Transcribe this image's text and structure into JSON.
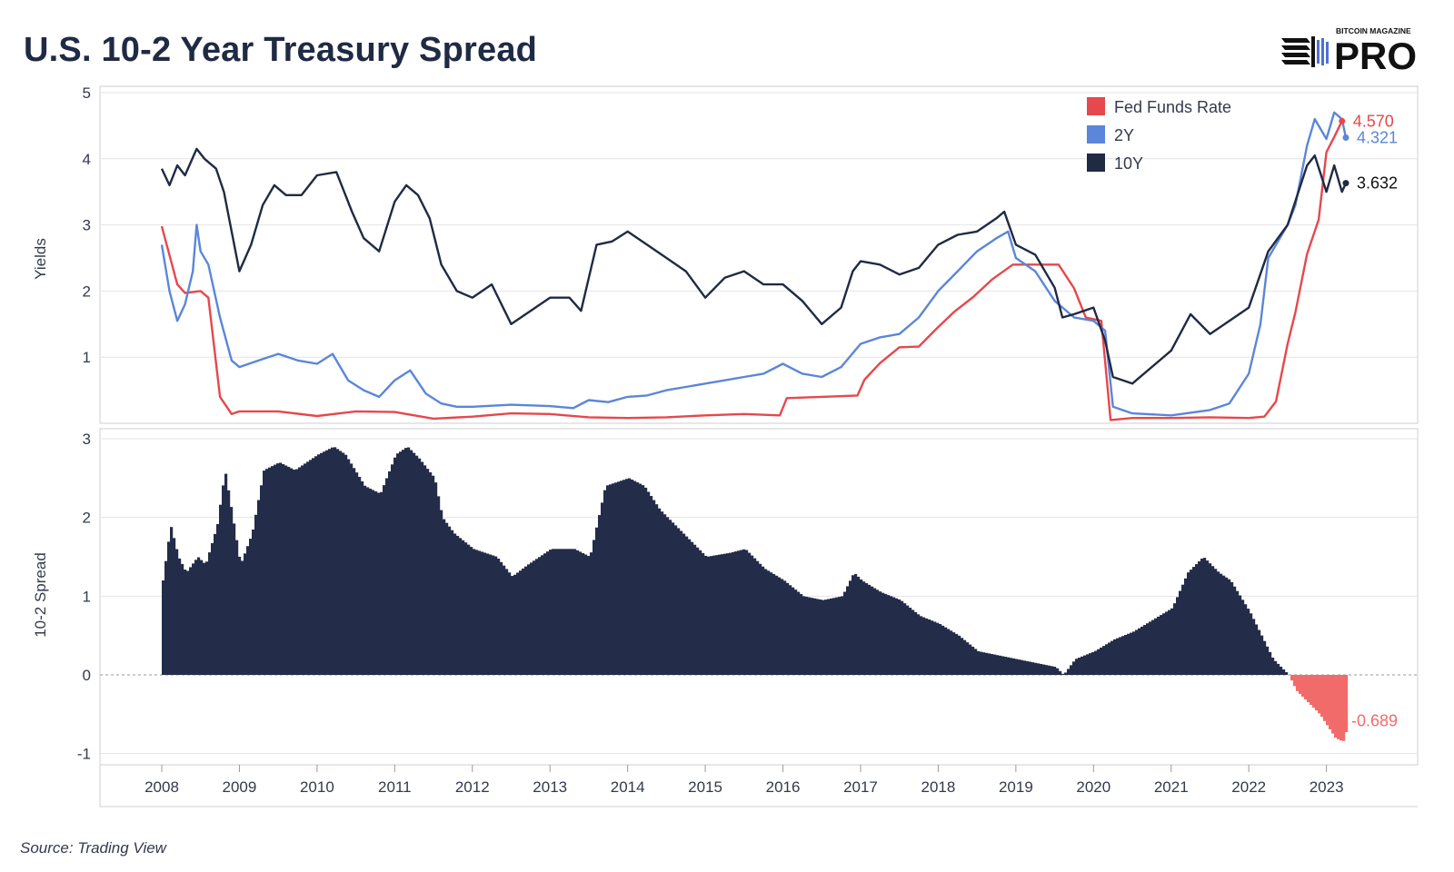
{
  "page": {
    "title": "U.S. 10-2 Year Treasury Spread",
    "source": "Source: Trading View",
    "logo": {
      "top_text": "BITCOIN MAGAZINE",
      "main_text": "PRO"
    }
  },
  "colors": {
    "fed": "#e5484d",
    "two_year": "#5b86d9",
    "ten_year": "#1f2a44",
    "spread_pos": "#232c49",
    "spread_neg": "#f26b6b",
    "grid": "#e4e4e4",
    "zero": "#999999"
  },
  "chart_data": [
    {
      "type": "line",
      "ylabel": "Yields",
      "ylim": [
        0,
        5
      ],
      "yticks": [
        1,
        2,
        3,
        4,
        5
      ],
      "xlim": [
        2008,
        2024
      ],
      "xticks": [
        2008,
        2009,
        2010,
        2011,
        2012,
        2013,
        2014,
        2015,
        2016,
        2017,
        2018,
        2019,
        2020,
        2021,
        2022,
        2023
      ],
      "legend_position": "top-right",
      "series": [
        {
          "name": "Fed Funds Rate",
          "color_key": "fed",
          "end_label": "4.570",
          "x": [
            2008.0,
            2008.2,
            2008.3,
            2008.5,
            2008.6,
            2008.75,
            2008.9,
            2009.0,
            2009.5,
            2010.0,
            2010.5,
            2011.0,
            2011.5,
            2012.0,
            2012.5,
            2013.0,
            2013.5,
            2014.0,
            2014.5,
            2015.0,
            2015.5,
            2015.96,
            2016.05,
            2016.5,
            2016.96,
            2017.05,
            2017.25,
            2017.5,
            2017.75,
            2017.96,
            2018.2,
            2018.45,
            2018.7,
            2018.96,
            2019.3,
            2019.55,
            2019.75,
            2019.9,
            2020.1,
            2020.22,
            2020.5,
            2021.0,
            2021.5,
            2022.0,
            2022.2,
            2022.35,
            2022.5,
            2022.6,
            2022.75,
            2022.9,
            2023.0,
            2023.1,
            2023.2
          ],
          "values": [
            2.98,
            2.1,
            1.97,
            2.0,
            1.9,
            0.4,
            0.14,
            0.18,
            0.18,
            0.11,
            0.18,
            0.17,
            0.07,
            0.1,
            0.15,
            0.14,
            0.09,
            0.08,
            0.09,
            0.12,
            0.14,
            0.12,
            0.38,
            0.4,
            0.42,
            0.66,
            0.91,
            1.15,
            1.16,
            1.41,
            1.68,
            1.91,
            2.18,
            2.4,
            2.4,
            2.4,
            2.04,
            1.6,
            1.55,
            0.05,
            0.08,
            0.08,
            0.09,
            0.08,
            0.1,
            0.33,
            1.2,
            1.68,
            2.56,
            3.08,
            4.1,
            4.33,
            4.57
          ]
        },
        {
          "name": "2Y",
          "color_key": "two_year",
          "end_label": "4.321",
          "x": [
            2008.0,
            2008.1,
            2008.2,
            2008.3,
            2008.4,
            2008.45,
            2008.5,
            2008.6,
            2008.75,
            2008.9,
            2009.0,
            2009.25,
            2009.5,
            2009.75,
            2010.0,
            2010.2,
            2010.4,
            2010.6,
            2010.8,
            2011.0,
            2011.2,
            2011.4,
            2011.6,
            2011.8,
            2012.0,
            2012.5,
            2013.0,
            2013.3,
            2013.5,
            2013.75,
            2014.0,
            2014.25,
            2014.5,
            2014.75,
            2015.0,
            2015.25,
            2015.5,
            2015.75,
            2016.0,
            2016.25,
            2016.5,
            2016.75,
            2017.0,
            2017.25,
            2017.5,
            2017.75,
            2018.0,
            2018.25,
            2018.5,
            2018.75,
            2018.9,
            2019.0,
            2019.25,
            2019.5,
            2019.75,
            2020.0,
            2020.15,
            2020.25,
            2020.5,
            2021.0,
            2021.5,
            2021.75,
            2022.0,
            2022.15,
            2022.25,
            2022.4,
            2022.5,
            2022.6,
            2022.75,
            2022.85,
            2023.0,
            2023.1,
            2023.2,
            2023.25
          ],
          "values": [
            2.7,
            2.0,
            1.55,
            1.8,
            2.3,
            3.0,
            2.6,
            2.4,
            1.6,
            0.95,
            0.85,
            0.95,
            1.05,
            0.95,
            0.9,
            1.05,
            0.65,
            0.5,
            0.4,
            0.65,
            0.8,
            0.45,
            0.3,
            0.25,
            0.25,
            0.28,
            0.26,
            0.23,
            0.35,
            0.32,
            0.4,
            0.42,
            0.5,
            0.55,
            0.6,
            0.65,
            0.7,
            0.75,
            0.9,
            0.75,
            0.7,
            0.85,
            1.2,
            1.3,
            1.35,
            1.6,
            2.0,
            2.3,
            2.6,
            2.8,
            2.9,
            2.5,
            2.3,
            1.85,
            1.6,
            1.55,
            1.4,
            0.25,
            0.15,
            0.12,
            0.2,
            0.3,
            0.75,
            1.5,
            2.5,
            2.8,
            3.0,
            3.3,
            4.2,
            4.6,
            4.3,
            4.7,
            4.6,
            4.32
          ]
        },
        {
          "name": "10Y",
          "color_key": "ten_year",
          "end_label": "3.632",
          "x": [
            2008.0,
            2008.1,
            2008.2,
            2008.3,
            2008.45,
            2008.55,
            2008.7,
            2008.8,
            2008.9,
            2009.0,
            2009.15,
            2009.3,
            2009.45,
            2009.6,
            2009.8,
            2010.0,
            2010.25,
            2010.45,
            2010.6,
            2010.8,
            2011.0,
            2011.15,
            2011.3,
            2011.45,
            2011.6,
            2011.8,
            2012.0,
            2012.25,
            2012.5,
            2012.75,
            2013.0,
            2013.25,
            2013.4,
            2013.6,
            2013.8,
            2014.0,
            2014.25,
            2014.5,
            2014.75,
            2015.0,
            2015.25,
            2015.5,
            2015.75,
            2016.0,
            2016.25,
            2016.5,
            2016.75,
            2016.9,
            2017.0,
            2017.25,
            2017.5,
            2017.75,
            2018.0,
            2018.25,
            2018.5,
            2018.75,
            2018.85,
            2019.0,
            2019.25,
            2019.5,
            2019.6,
            2019.75,
            2020.0,
            2020.15,
            2020.25,
            2020.5,
            2021.0,
            2021.25,
            2021.5,
            2021.75,
            2022.0,
            2022.25,
            2022.5,
            2022.75,
            2022.85,
            2023.0,
            2023.1,
            2023.2,
            2023.25
          ],
          "values": [
            3.85,
            3.6,
            3.9,
            3.75,
            4.15,
            4.0,
            3.85,
            3.5,
            2.9,
            2.3,
            2.7,
            3.3,
            3.6,
            3.45,
            3.45,
            3.75,
            3.8,
            3.2,
            2.8,
            2.6,
            3.35,
            3.6,
            3.45,
            3.1,
            2.4,
            2.0,
            1.9,
            2.1,
            1.5,
            1.7,
            1.9,
            1.9,
            1.7,
            2.7,
            2.75,
            2.9,
            2.7,
            2.5,
            2.3,
            1.9,
            2.2,
            2.3,
            2.1,
            2.1,
            1.85,
            1.5,
            1.75,
            2.3,
            2.45,
            2.4,
            2.25,
            2.35,
            2.7,
            2.85,
            2.9,
            3.1,
            3.2,
            2.7,
            2.55,
            2.05,
            1.6,
            1.65,
            1.75,
            1.25,
            0.7,
            0.6,
            1.1,
            1.65,
            1.35,
            1.55,
            1.75,
            2.6,
            3.0,
            3.9,
            4.05,
            3.5,
            3.9,
            3.5,
            3.632
          ]
        }
      ]
    },
    {
      "type": "bar",
      "ylabel": "10-2 Spread",
      "ylim": [
        -1,
        3
      ],
      "yticks": [
        -1,
        0,
        1,
        2,
        3
      ],
      "end_label": "-0.689",
      "x": [
        2008.0,
        2008.1,
        2008.2,
        2008.3,
        2008.45,
        2008.55,
        2008.7,
        2008.8,
        2008.9,
        2009.0,
        2009.15,
        2009.3,
        2009.5,
        2009.7,
        2010.0,
        2010.2,
        2010.35,
        2010.6,
        2010.8,
        2011.0,
        2011.15,
        2011.3,
        2011.5,
        2011.6,
        2011.75,
        2012.0,
        2012.3,
        2012.5,
        2012.7,
        2013.0,
        2013.3,
        2013.5,
        2013.7,
        2014.0,
        2014.2,
        2014.4,
        2014.6,
        2014.8,
        2015.0,
        2015.3,
        2015.5,
        2015.75,
        2016.0,
        2016.25,
        2016.5,
        2016.75,
        2016.9,
        2017.0,
        2017.25,
        2017.5,
        2017.75,
        2018.0,
        2018.25,
        2018.5,
        2018.75,
        2019.0,
        2019.25,
        2019.5,
        2019.6,
        2019.75,
        2020.0,
        2020.25,
        2020.5,
        2020.75,
        2021.0,
        2021.2,
        2021.4,
        2021.6,
        2021.75,
        2022.0,
        2022.2,
        2022.3,
        2022.4,
        2022.5,
        2022.6,
        2022.7,
        2022.8,
        2022.9,
        2023.0,
        2023.1,
        2023.2,
        2023.25
      ],
      "values": [
        1.2,
        1.9,
        1.5,
        1.3,
        1.5,
        1.4,
        1.9,
        2.6,
        2.0,
        1.4,
        1.8,
        2.6,
        2.7,
        2.6,
        2.8,
        2.9,
        2.8,
        2.4,
        2.3,
        2.8,
        2.9,
        2.75,
        2.5,
        2.0,
        1.8,
        1.6,
        1.5,
        1.25,
        1.4,
        1.6,
        1.6,
        1.5,
        2.4,
        2.5,
        2.4,
        2.1,
        1.9,
        1.7,
        1.5,
        1.55,
        1.6,
        1.35,
        1.2,
        1.0,
        0.95,
        1.0,
        1.3,
        1.2,
        1.05,
        0.95,
        0.75,
        0.65,
        0.5,
        0.3,
        0.25,
        0.2,
        0.15,
        0.1,
        0.0,
        0.2,
        0.3,
        0.45,
        0.55,
        0.7,
        0.85,
        1.3,
        1.5,
        1.3,
        1.2,
        0.8,
        0.4,
        0.2,
        0.1,
        0.0,
        -0.2,
        -0.3,
        -0.4,
        -0.5,
        -0.65,
        -0.8,
        -0.85,
        -0.689
      ]
    }
  ]
}
